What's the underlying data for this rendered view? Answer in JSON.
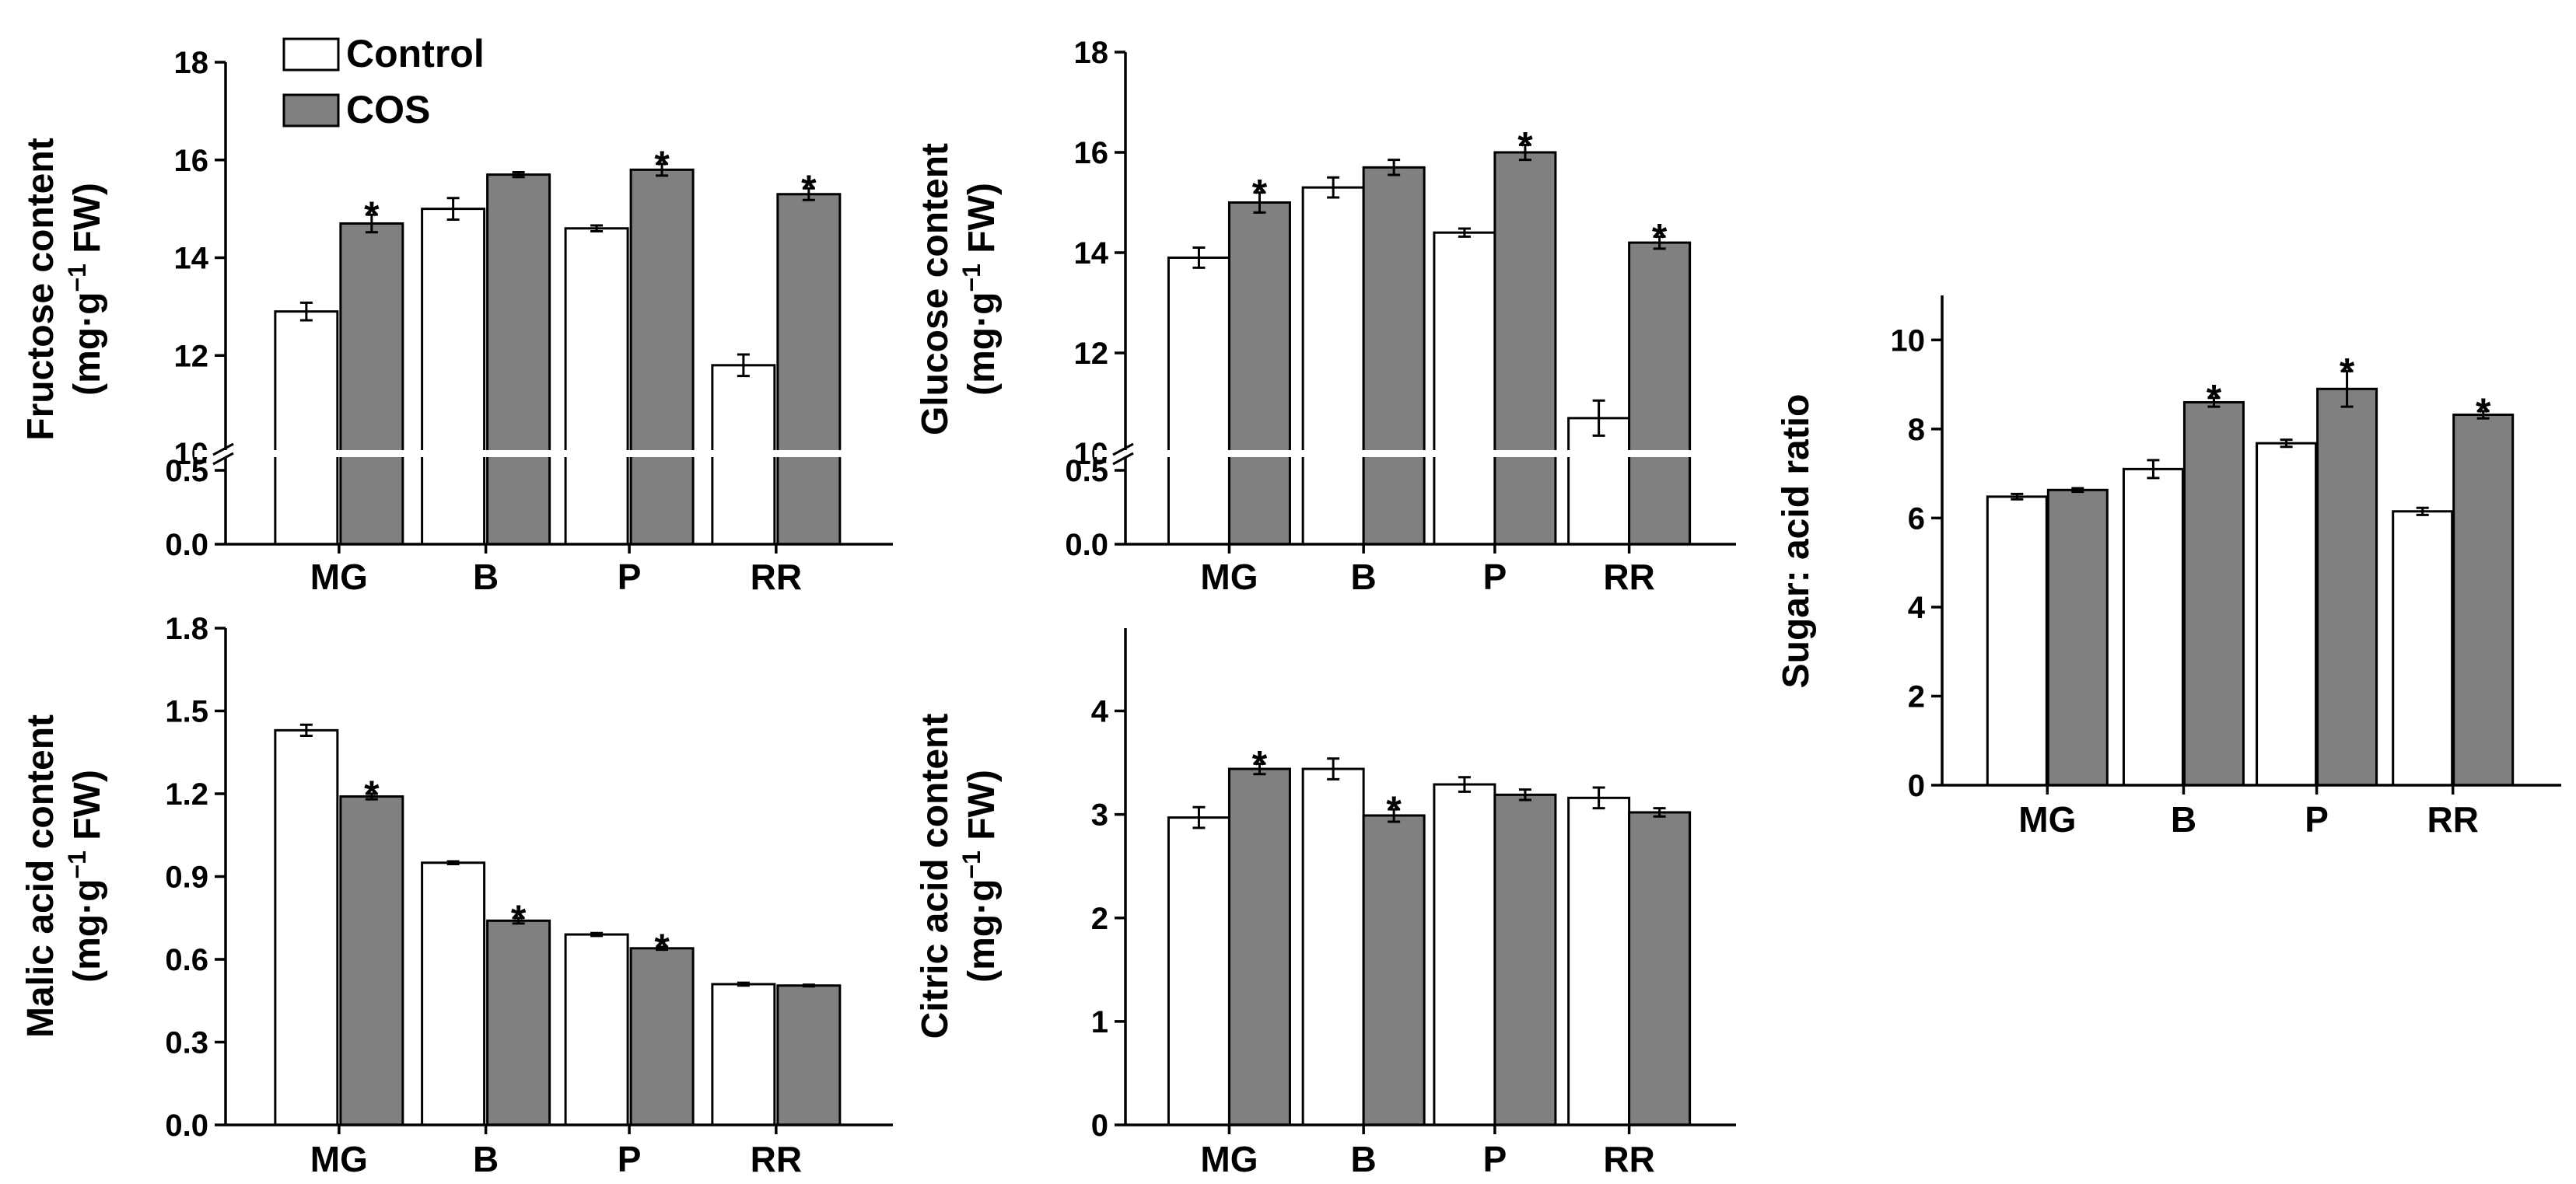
{
  "colors": {
    "control": "#ffffff",
    "cos": "#808080",
    "axis": "#000000",
    "break": "#ffffff"
  },
  "legend": {
    "entries": [
      "Control",
      "COS"
    ],
    "placement": "top-left"
  },
  "chart_data": [
    {
      "id": "fructose",
      "type": "bar",
      "ylabel_line1": "Fructose content",
      "ylabel_line2": "(mg·g",
      "ylabel_sup": "−1",
      "ylabel_tail": " FW)",
      "categories": [
        "MG",
        "B",
        "P",
        "RR"
      ],
      "series": [
        {
          "name": "Control",
          "values": [
            12.9,
            15.0,
            14.6,
            11.8
          ],
          "errors": [
            0.18,
            0.22,
            0.06,
            0.22
          ]
        },
        {
          "name": "COS",
          "values": [
            14.7,
            15.7,
            15.8,
            15.3
          ],
          "errors": [
            0.18,
            0.05,
            0.12,
            0.12
          ]
        }
      ],
      "significance": [
        [
          false,
          true
        ],
        [
          false,
          false
        ],
        [
          false,
          true
        ],
        [
          false,
          true
        ]
      ],
      "marker": "*",
      "axis_break": {
        "lower": [
          0,
          0.6
        ],
        "upper": [
          10,
          18
        ]
      },
      "yticks_lower": [
        "0.0",
        "0.5"
      ],
      "yticks_upper": [
        "10",
        "12",
        "14",
        "16",
        "18"
      ]
    },
    {
      "id": "glucose",
      "type": "bar",
      "ylabel_line1": "Glucose content",
      "ylabel_line2": "(mg·g",
      "ylabel_sup": "−1",
      "ylabel_tail": " FW)",
      "categories": [
        "MG",
        "B",
        "P",
        "RR"
      ],
      "series": [
        {
          "name": "Control",
          "values": [
            13.9,
            15.3,
            14.4,
            10.7
          ],
          "errors": [
            0.2,
            0.2,
            0.08,
            0.35
          ]
        },
        {
          "name": "COS",
          "values": [
            15.0,
            15.7,
            16.0,
            14.2
          ],
          "errors": [
            0.2,
            0.15,
            0.15,
            0.12
          ]
        }
      ],
      "significance": [
        [
          false,
          true
        ],
        [
          false,
          false
        ],
        [
          false,
          true
        ],
        [
          false,
          true
        ]
      ],
      "marker": "*",
      "axis_break": {
        "lower": [
          0,
          0.6
        ],
        "upper": [
          10,
          18
        ]
      },
      "yticks_lower": [
        "0.0",
        "0.5"
      ],
      "yticks_upper": [
        "10",
        "12",
        "14",
        "16",
        "18"
      ]
    },
    {
      "id": "malic",
      "type": "bar",
      "ylabel_line1": "Malic  acid content",
      "ylabel_line2": "(mg·g",
      "ylabel_sup": "−1",
      "ylabel_tail": " FW)",
      "categories": [
        "MG",
        "B",
        "P",
        "RR"
      ],
      "series": [
        {
          "name": "Control",
          "values": [
            1.43,
            0.95,
            0.69,
            0.51
          ],
          "errors": [
            0.02,
            0.005,
            0.005,
            0.005
          ]
        },
        {
          "name": "COS",
          "values": [
            1.19,
            0.74,
            0.64,
            0.505
          ],
          "errors": [
            0.01,
            0.01,
            0.005,
            0.003
          ]
        }
      ],
      "significance": [
        [
          false,
          true
        ],
        [
          false,
          true
        ],
        [
          false,
          true
        ],
        [
          false,
          false
        ]
      ],
      "marker": "*",
      "ylim": [
        0,
        1.8
      ],
      "yticks": [
        "0.0",
        "0.3",
        "0.6",
        "0.9",
        "1.2",
        "1.5",
        "1.8"
      ]
    },
    {
      "id": "citric",
      "type": "bar",
      "ylabel_line1": "Citric acid content",
      "ylabel_line2": "(mg·g",
      "ylabel_sup": "−1",
      "ylabel_tail": " FW)",
      "categories": [
        "MG",
        "B",
        "P",
        "RR"
      ],
      "series": [
        {
          "name": "Control",
          "values": [
            2.97,
            3.44,
            3.29,
            3.16
          ],
          "errors": [
            0.1,
            0.1,
            0.07,
            0.1
          ]
        },
        {
          "name": "COS",
          "values": [
            3.44,
            2.99,
            3.19,
            3.02
          ],
          "errors": [
            0.05,
            0.06,
            0.05,
            0.04
          ]
        }
      ],
      "significance": [
        [
          false,
          true
        ],
        [
          false,
          true
        ],
        [
          false,
          false
        ],
        [
          false,
          false
        ]
      ],
      "marker": "*",
      "ylim": [
        0,
        4.8
      ],
      "yticks": [
        "0",
        "1",
        "2",
        "3",
        "4"
      ]
    },
    {
      "id": "ratio",
      "type": "bar",
      "ylabel_line1": "Sugar: acid ratio",
      "categories": [
        "MG",
        "B",
        "P",
        "RR"
      ],
      "series": [
        {
          "name": "Control",
          "values": [
            6.48,
            7.1,
            7.68,
            6.15
          ],
          "errors": [
            0.06,
            0.2,
            0.08,
            0.08
          ]
        },
        {
          "name": "COS",
          "values": [
            6.63,
            8.6,
            8.9,
            8.32
          ],
          "errors": [
            0.04,
            0.1,
            0.4,
            0.08
          ]
        }
      ],
      "significance": [
        [
          false,
          false
        ],
        [
          false,
          true
        ],
        [
          false,
          true
        ],
        [
          false,
          true
        ]
      ],
      "marker": "*",
      "ylim": [
        0,
        11
      ],
      "yticks": [
        "0",
        "2",
        "4",
        "6",
        "8",
        "10"
      ]
    }
  ]
}
